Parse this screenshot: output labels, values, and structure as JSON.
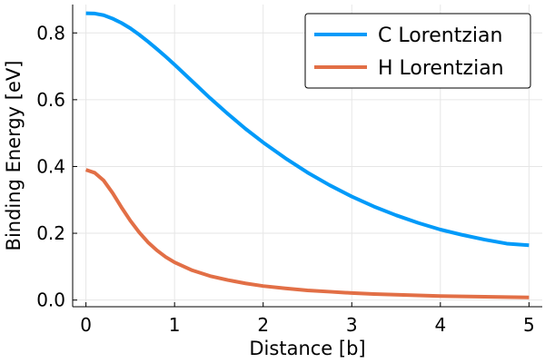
{
  "chart_data": {
    "type": "line",
    "title": "",
    "xlabel": "Distance [b]",
    "ylabel": "Binding Energy [eV]",
    "xlim": [
      -0.15,
      5.15
    ],
    "ylim": [
      -0.02,
      0.885
    ],
    "xticks": [
      0,
      1,
      2,
      3,
      4,
      5
    ],
    "xtick_labels": [
      "0",
      "1",
      "2",
      "3",
      "4",
      "5"
    ],
    "yticks": [
      0.0,
      0.2,
      0.4,
      0.6,
      0.8
    ],
    "ytick_labels": [
      "0.0",
      "0.2",
      "0.4",
      "0.6",
      "0.8"
    ],
    "grid": true,
    "legend_position": "top-right",
    "x": [
      0,
      0.1,
      0.2,
      0.3,
      0.4,
      0.5,
      0.6,
      0.7,
      0.8,
      0.9,
      1.0,
      1.2,
      1.4,
      1.6,
      1.8,
      2.0,
      2.25,
      2.5,
      2.75,
      3.0,
      3.25,
      3.5,
      3.75,
      4.0,
      4.25,
      4.5,
      4.75,
      5.0
    ],
    "series": [
      {
        "name": "C Lorentzian",
        "color": "#009af9",
        "values": [
          0.859,
          0.858,
          0.853,
          0.843,
          0.83,
          0.814,
          0.795,
          0.774,
          0.752,
          0.729,
          0.705,
          0.655,
          0.605,
          0.558,
          0.513,
          0.472,
          0.425,
          0.382,
          0.344,
          0.31,
          0.28,
          0.254,
          0.231,
          0.211,
          0.195,
          0.181,
          0.169,
          0.164
        ]
      },
      {
        "name": "H Lorentzian",
        "color": "#e26f46",
        "values": [
          0.39,
          0.381,
          0.358,
          0.321,
          0.278,
          0.238,
          0.203,
          0.173,
          0.149,
          0.129,
          0.113,
          0.089,
          0.072,
          0.06,
          0.05,
          0.042,
          0.035,
          0.029,
          0.025,
          0.021,
          0.018,
          0.016,
          0.014,
          0.012,
          0.011,
          0.01,
          0.009,
          0.008
        ]
      }
    ]
  }
}
